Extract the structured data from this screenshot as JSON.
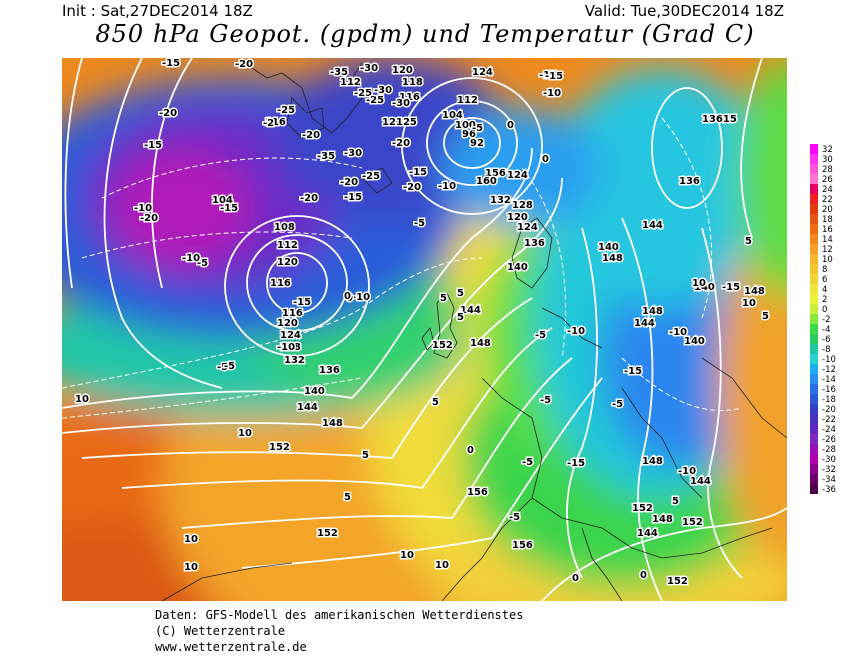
{
  "header": {
    "init": "Init : Sat,27DEC2014 18Z",
    "valid": "Valid: Tue,30DEC2014 18Z",
    "title": "850 hPa Geopot. (gpdm) und Temperatur (Grad C)"
  },
  "footer": {
    "line1": "Daten: GFS-Modell des amerikanischen Wetterdienstes",
    "line2": "(C) Wetterzentrale",
    "line3": "www.wetterzentrale.de"
  },
  "legend": {
    "values": [
      "32",
      "30",
      "28",
      "26",
      "24",
      "22",
      "20",
      "18",
      "16",
      "14",
      "12",
      "10",
      "8",
      "6",
      "4",
      "2",
      "0",
      "-2",
      "-4",
      "-6",
      "-8",
      "-10",
      "-12",
      "-14",
      "-16",
      "-18",
      "-20",
      "-22",
      "-24",
      "-26",
      "-28",
      "-30",
      "-32",
      "-34",
      "-36"
    ],
    "colors": [
      "#ff00ff",
      "#ff33ee",
      "#ff55dd",
      "#ff77cc",
      "#e4005c",
      "#f01e1e",
      "#e03a0a",
      "#e55515",
      "#f06a10",
      "#f4891f",
      "#f6a027",
      "#f5b52f",
      "#f4c530",
      "#f3d535",
      "#efe53c",
      "#eef03c",
      "#c8ee3a",
      "#86e83b",
      "#3fd84a",
      "#2acc62",
      "#22c6a2",
      "#26d2d2",
      "#1eaef0",
      "#2a8ef0",
      "#2a6ee8",
      "#2a58d8",
      "#3242c8",
      "#4a32c0",
      "#6428c0",
      "#8028c0",
      "#9a10b8",
      "#b000b0",
      "#8c008c",
      "#6a006a",
      "#4a004a"
    ]
  },
  "geopotential_labels": [
    "120",
    "118",
    "112",
    "124",
    "112",
    "104",
    "100",
    "96",
    "92",
    "116",
    "120",
    "125",
    "116",
    "132",
    "128",
    "120",
    "124",
    "136",
    "140",
    "144",
    "148",
    "152",
    "156",
    "160",
    "124",
    "116",
    "120",
    "112",
    "108",
    "104",
    "116",
    "120",
    "124",
    "128",
    "132",
    "136",
    "140",
    "144",
    "148",
    "152",
    "156",
    "152",
    "140",
    "144",
    "148",
    "136",
    "13615",
    "140",
    "148",
    "140",
    "144",
    "148",
    "152",
    "156",
    "144",
    "148",
    "152",
    "148",
    "144",
    "152"
  ],
  "temperature_labels": [
    "-15",
    "-20",
    "-30",
    "-35",
    "-25",
    "-30",
    "-25",
    "-30",
    "-2",
    "-25",
    "-30",
    "-35",
    "-20",
    "-20",
    "-25",
    "-20",
    "-15",
    "-20",
    "-15",
    "-10",
    "-15",
    "-10",
    "-5",
    "-15",
    "-20",
    "-15",
    "-10",
    "-20",
    "-10",
    "-5",
    "-15",
    "-20",
    "-15",
    "-10",
    "-5",
    "0",
    "-10",
    "-5",
    "0",
    "-5",
    "0",
    "5",
    "5",
    "-5",
    "5",
    "5",
    "10",
    "10",
    "5",
    "5",
    "0",
    "-5",
    "-5",
    "-15",
    "-10",
    "-15",
    "-5",
    "0",
    "10",
    "10",
    "10",
    "10",
    "10",
    "10",
    "-10",
    "-15",
    "-10",
    "-5",
    "0",
    "5",
    "10",
    "5",
    "0",
    "5"
  ]
}
